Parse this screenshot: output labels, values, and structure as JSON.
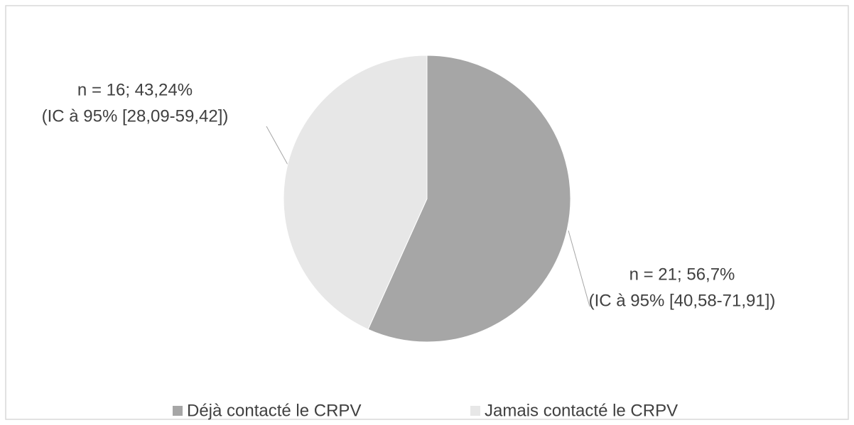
{
  "chart_data": {
    "type": "pie",
    "categories": [
      "Déjà contacté le CRPV",
      "Jamais contacté le CRPV"
    ],
    "values": [
      56.7,
      43.24
    ],
    "value_labels": [
      "n = 21; 56,7%",
      "n = 16; 43,24%"
    ],
    "ci_labels": [
      "(IC à 95% [40,58-71,91])",
      "(IC à 95% [28,09-59,42])"
    ],
    "colors": [
      "#a6a6a6",
      "#e7e7e7"
    ],
    "legend": "bottom"
  }
}
